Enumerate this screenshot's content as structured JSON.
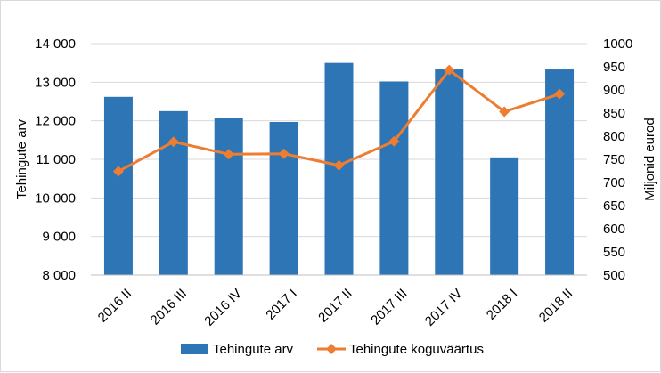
{
  "chart_data": {
    "type": "bar",
    "categories": [
      "2016 II",
      "2016 III",
      "2016 IV",
      "2017 I",
      "2017 II",
      "2017 III",
      "2017 IV",
      "2018 I",
      "2018 II"
    ],
    "series": [
      {
        "name": "Tehingute arv",
        "type": "bar",
        "axis": "left",
        "color": "#2E75B6",
        "values": [
          12620,
          12250,
          12080,
          11970,
          13500,
          13020,
          13330,
          11050,
          13330
        ]
      },
      {
        "name": "Tehingute koguväärtus",
        "type": "line",
        "axis": "right",
        "color": "#ED7D31",
        "marker": "diamond",
        "values": [
          724,
          788,
          761,
          762,
          737,
          789,
          943,
          853,
          891
        ]
      }
    ],
    "ylabel_left": "Tehingute arv",
    "ylabel_right": "Miljonid eurod",
    "ylim_left": [
      8000,
      14000
    ],
    "ylim_right": [
      500,
      1000
    ],
    "yticks_left": [
      "8 000",
      "9 000",
      "10 000",
      "11 000",
      "12 000",
      "13 000",
      "14 000"
    ],
    "yticks_right": [
      "500",
      "550",
      "600",
      "650",
      "700",
      "750",
      "800",
      "850",
      "900",
      "950",
      "1000"
    ],
    "grid": true,
    "legend_position": "bottom"
  }
}
